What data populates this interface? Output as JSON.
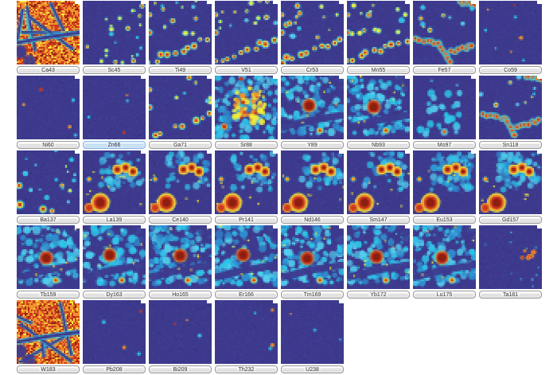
{
  "app": {
    "description": "Grid of LA-ICP-MS elemental distribution map thumbnails, one labelled button per isotope",
    "background": "#ffffff"
  },
  "palette": {
    "bg": "#3d3a8e",
    "bg_dark": "#34316f",
    "bg_light": "#4a46a0",
    "cyan": "#2ec4e8",
    "cyan2": "#52cdec",
    "blue3": "#2f8fd0",
    "yellow": "#f6ea36",
    "orange": "#f0922d",
    "red": "#cc3a1e",
    "dark_red": "#8e1f10",
    "label_border": "#9a9a9a",
    "label_text": "#333333",
    "selected_fill": "#cde4f7",
    "selected_border": "#85b3dd"
  },
  "grid": {
    "columns": 8,
    "panels": [
      {
        "label": "Ca43",
        "pattern": "hot"
      },
      {
        "label": "Sc45",
        "pattern": "speckle-right"
      },
      {
        "label": "Ti49",
        "pattern": "chain"
      },
      {
        "label": "V51",
        "pattern": "chain"
      },
      {
        "label": "Cr53",
        "pattern": "chain"
      },
      {
        "label": "Mn55",
        "pattern": "chain"
      },
      {
        "label": "Fe57",
        "pattern": "vein"
      },
      {
        "label": "Co59",
        "pattern": "sparse",
        "density": 8
      },
      {
        "label": "Ni60",
        "pattern": "sparse",
        "density": 5
      },
      {
        "label": "Zn66",
        "pattern": "sparse",
        "density": 4,
        "selected": true
      },
      {
        "label": "Ga71",
        "pattern": "chain-light"
      },
      {
        "label": "Sr88",
        "pattern": "mass"
      },
      {
        "label": "Y89",
        "pattern": "cyanblob"
      },
      {
        "label": "Nb93",
        "pattern": "cyanblob"
      },
      {
        "label": "Mo97",
        "pattern": "patches"
      },
      {
        "label": "Sn118",
        "pattern": "vein"
      },
      {
        "label": "Ba137",
        "pattern": "speckle-left"
      },
      {
        "label": "La139",
        "pattern": "ree"
      },
      {
        "label": "Ce140",
        "pattern": "ree"
      },
      {
        "label": "Pr141",
        "pattern": "ree"
      },
      {
        "label": "Nd146",
        "pattern": "ree"
      },
      {
        "label": "Sm147",
        "pattern": "ree"
      },
      {
        "label": "Eu153",
        "pattern": "ree-cyan"
      },
      {
        "label": "Gd157",
        "pattern": "ree-cyan"
      },
      {
        "label": "Tb159",
        "pattern": "cyanblob"
      },
      {
        "label": "Dy163",
        "pattern": "cyanblob"
      },
      {
        "label": "Ho165",
        "pattern": "cyanblob"
      },
      {
        "label": "Er166",
        "pattern": "cyanblob"
      },
      {
        "label": "Tm169",
        "pattern": "cyanblob"
      },
      {
        "label": "Yb172",
        "pattern": "cyanblob"
      },
      {
        "label": "Lu175",
        "pattern": "cyanblob"
      },
      {
        "label": "Ta181",
        "pattern": "cluster"
      },
      {
        "label": "W183",
        "pattern": "hot"
      },
      {
        "label": "Pb208",
        "pattern": "sparse",
        "density": 4
      },
      {
        "label": "Bi209",
        "pattern": "sparse",
        "density": 3
      },
      {
        "label": "Th232",
        "pattern": "sparse",
        "density": 4
      },
      {
        "label": "U238",
        "pattern": "sparse",
        "density": 3
      }
    ]
  }
}
